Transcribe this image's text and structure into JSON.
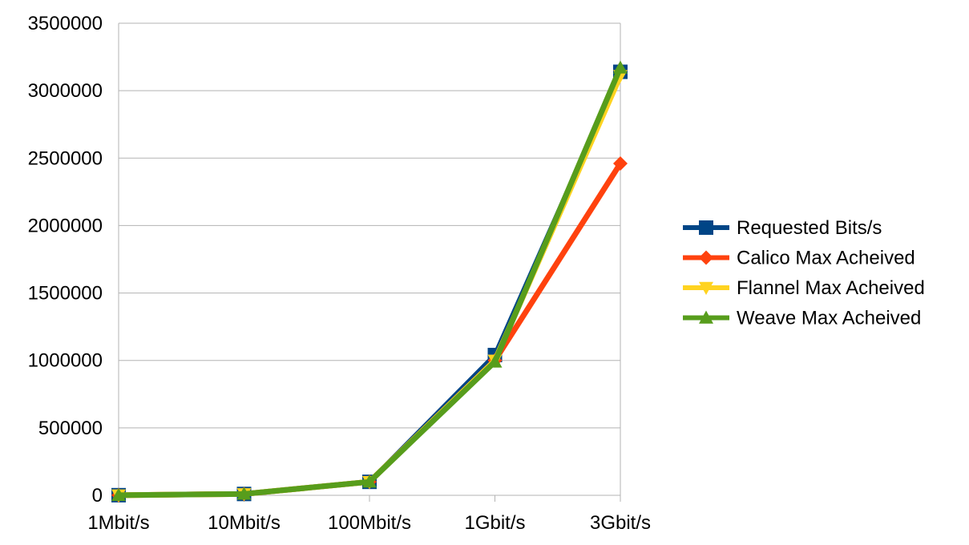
{
  "chart_data": {
    "type": "line",
    "title": "",
    "xlabel": "",
    "ylabel": "",
    "categories": [
      "1Mbit/s",
      "10Mbit/s",
      "100Mbit/s",
      "1Gbit/s",
      "3Gbit/s"
    ],
    "ylim": [
      0,
      3500000
    ],
    "yticks": [
      0,
      500000,
      1000000,
      1500000,
      2000000,
      2500000,
      3000000,
      3500000
    ],
    "grid": true,
    "legend_position": "right",
    "series": [
      {
        "name": "Requested Bits/s",
        "color": "#004586",
        "marker": "square",
        "values": [
          1000,
          10000,
          100000,
          1040000,
          3140000
        ]
      },
      {
        "name": "Calico Max Acheived",
        "color": "#ff420e",
        "marker": "diamond",
        "values": [
          1000,
          10000,
          100000,
          1000000,
          2460000
        ]
      },
      {
        "name": "Flannel Max Acheived",
        "color": "#ffd320",
        "marker": "triangle-down",
        "values": [
          1000,
          10000,
          100000,
          1000000,
          3110000
        ]
      },
      {
        "name": "Weave Max Acheived",
        "color": "#579d1c",
        "marker": "triangle-up",
        "values": [
          1000,
          10000,
          100000,
          990000,
          3170000
        ]
      }
    ]
  }
}
